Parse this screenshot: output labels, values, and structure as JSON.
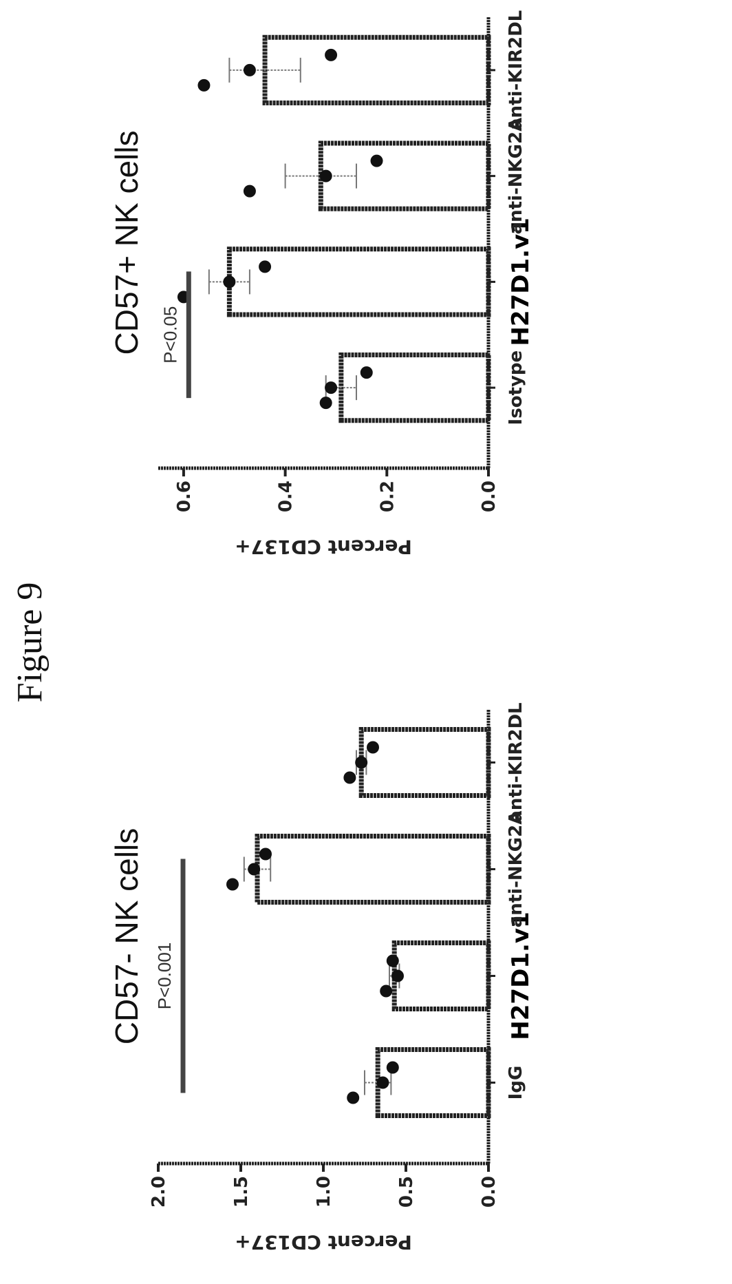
{
  "figure": {
    "title": "Figure 9"
  },
  "chart_data": [
    {
      "type": "bar",
      "title": "CD57- NK cells",
      "ylabel": "Percent CD137+",
      "ylim": [
        0,
        2.0
      ],
      "yticks": [
        "0.0",
        "0.5",
        "1.0",
        "1.5",
        "2.0"
      ],
      "categories": [
        "IgG",
        "H27D1.v1",
        "anti-NKG2A",
        "anti-KIR2DL"
      ],
      "bold_category": "H27D1.v1",
      "values": [
        0.67,
        0.57,
        1.4,
        0.77
      ],
      "errors": [
        0.08,
        0.03,
        0.08,
        0.03
      ],
      "points": [
        [
          0.82,
          0.64,
          0.58
        ],
        [
          0.62,
          0.55,
          0.58
        ],
        [
          1.55,
          1.42,
          1.35
        ],
        [
          0.84,
          0.77,
          0.7
        ]
      ],
      "significance": {
        "label": "P<0.001",
        "from": "IgG",
        "to": "anti-NKG2A",
        "y": 1.85
      }
    },
    {
      "type": "bar",
      "title": "CD57+ NK cells",
      "ylabel": "Percent CD137+",
      "ylim": [
        0,
        0.65
      ],
      "yticks": [
        "0.0",
        "0.2",
        "0.4",
        "0.6"
      ],
      "categories": [
        "Isotype",
        "H27D1.v1",
        "anti-NKG2A",
        "anti-KIR2DL"
      ],
      "bold_category": "H27D1.v1",
      "values": [
        0.29,
        0.51,
        0.33,
        0.44
      ],
      "errors": [
        0.03,
        0.04,
        0.07,
        0.07
      ],
      "points": [
        [
          0.32,
          0.31,
          0.24
        ],
        [
          0.6,
          0.51,
          0.44
        ],
        [
          0.47,
          0.32,
          0.22
        ],
        [
          0.56,
          0.47,
          0.31
        ]
      ],
      "significance": {
        "label": "P<0.05",
        "from": "Isotype",
        "to": "H27D1.v1",
        "y": 0.59
      }
    }
  ]
}
